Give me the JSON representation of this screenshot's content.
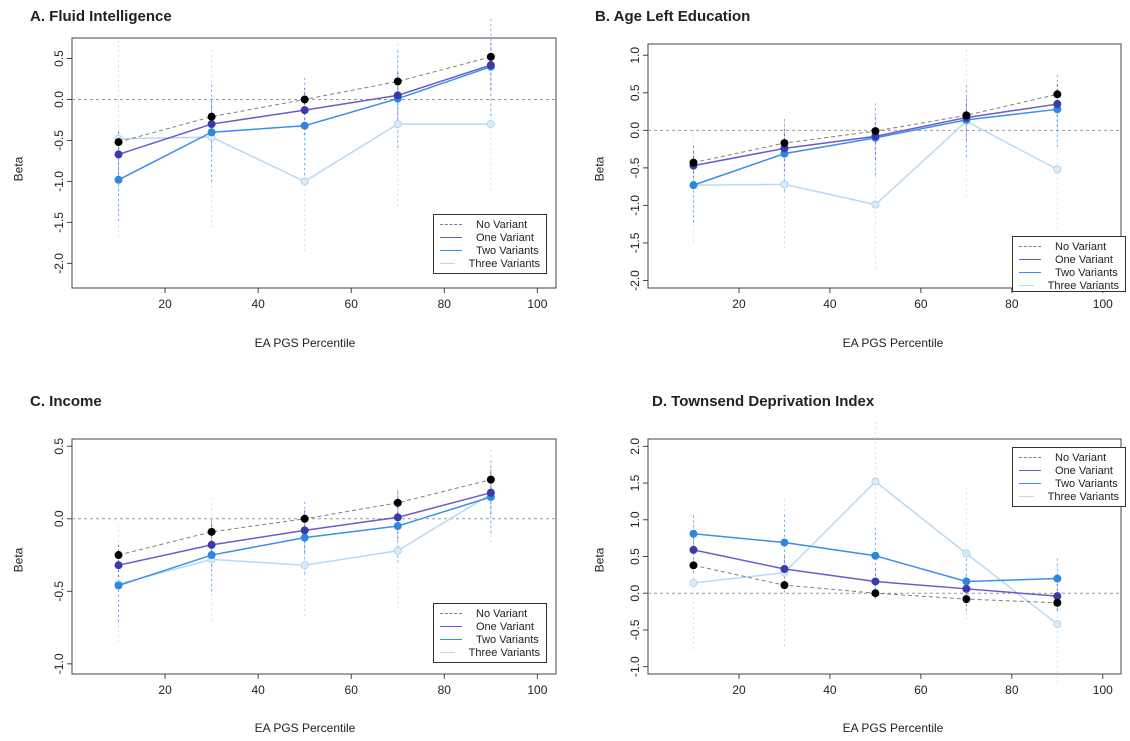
{
  "legend_labels": [
    "No Variant",
    "One Variant",
    "Two Variants",
    "Three Variants"
  ],
  "series_colors": [
    "#7f7f7f",
    "#6a5acd",
    "#3a8fe8",
    "#b9d8f2"
  ],
  "marker_colors": [
    "#000000",
    "#3a3aa8",
    "#2f86e0",
    "#d8ecfa"
  ],
  "chart_data": [
    {
      "type": "line",
      "title": "A. Fluid Intelligence",
      "xlabel": "EA PGS Percentile",
      "ylabel": "Beta",
      "x": [
        10,
        30,
        50,
        70,
        90
      ],
      "xticks": [
        20,
        40,
        60,
        80,
        100
      ],
      "xlim": [
        0,
        104
      ],
      "ylim": [
        -2.3,
        0.75
      ],
      "yticks": [
        "0.5",
        "0.0",
        "-0.5",
        "-1.0",
        "-1.5",
        "-2.0"
      ],
      "legend_position": "bottom-right",
      "series": [
        {
          "name": "No Variant",
          "values": [
            -0.52,
            -0.21,
            0.0,
            0.22,
            0.52
          ],
          "err": [
            0.15,
            0.15,
            0.1,
            0.15,
            0.15
          ]
        },
        {
          "name": "One Variant",
          "values": [
            -0.67,
            -0.3,
            -0.13,
            0.05,
            0.42
          ],
          "err": [
            0.3,
            0.3,
            0.3,
            0.3,
            0.3
          ]
        },
        {
          "name": "Two Variants",
          "values": [
            -0.98,
            -0.4,
            -0.32,
            0.01,
            0.4
          ],
          "err": [
            0.5,
            0.6,
            0.6,
            0.6,
            0.6
          ]
        },
        {
          "name": "Three Variants",
          "values": [
            -0.48,
            -0.46,
            -1.0,
            -0.3,
            -0.3
          ],
          "err": [
            1.2,
            1.1,
            0.85,
            1.0,
            0.8
          ]
        }
      ]
    },
    {
      "type": "line",
      "title": "B. Age Left Education",
      "xlabel": "EA PGS Percentile",
      "ylabel": "Beta",
      "x": [
        10,
        30,
        50,
        70,
        90
      ],
      "xticks": [
        20,
        40,
        60,
        80,
        100
      ],
      "xlim": [
        0,
        104
      ],
      "ylim": [
        -2.1,
        1.15
      ],
      "yticks": [
        "1.0",
        "0.5",
        "0.0",
        "-0.5",
        "-1.0",
        "-1.5",
        "-2.0"
      ],
      "legend_position": "bottom-right",
      "series": [
        {
          "name": "No Variant",
          "values": [
            -0.43,
            -0.17,
            -0.01,
            0.2,
            0.48
          ],
          "err": [
            0.15,
            0.15,
            0.1,
            0.15,
            0.15
          ]
        },
        {
          "name": "One Variant",
          "values": [
            -0.47,
            -0.24,
            -0.08,
            0.17,
            0.35
          ],
          "err": [
            0.3,
            0.3,
            0.3,
            0.3,
            0.3
          ]
        },
        {
          "name": "Two Variants",
          "values": [
            -0.73,
            -0.31,
            -0.1,
            0.14,
            0.28
          ],
          "err": [
            0.5,
            0.5,
            0.5,
            0.5,
            0.5
          ]
        },
        {
          "name": "Three Variants",
          "values": [
            -0.73,
            -0.72,
            -0.99,
            0.12,
            -0.52
          ],
          "err": [
            0.75,
            0.85,
            0.85,
            1.0,
            0.8
          ]
        }
      ]
    },
    {
      "type": "line",
      "title": "C. Income",
      "xlabel": "EA PGS Percentile",
      "ylabel": "Beta",
      "x": [
        10,
        30,
        50,
        70,
        90
      ],
      "xticks": [
        20,
        40,
        60,
        80,
        100
      ],
      "xlim": [
        0,
        104
      ],
      "ylim": [
        -1.07,
        0.55
      ],
      "yticks": [
        "0.5",
        "0.0",
        "-0.5",
        "-1.0"
      ],
      "legend_position": "bottom-right",
      "series": [
        {
          "name": "No Variant",
          "values": [
            -0.25,
            -0.09,
            0.0,
            0.11,
            0.27
          ],
          "err": [
            0.08,
            0.08,
            0.05,
            0.08,
            0.08
          ]
        },
        {
          "name": "One Variant",
          "values": [
            -0.32,
            -0.18,
            -0.08,
            0.01,
            0.18
          ],
          "err": [
            0.15,
            0.15,
            0.15,
            0.15,
            0.15
          ]
        },
        {
          "name": "Two Variants",
          "values": [
            -0.46,
            -0.25,
            -0.13,
            -0.05,
            0.15
          ],
          "err": [
            0.25,
            0.25,
            0.25,
            0.25,
            0.25
          ]
        },
        {
          "name": "Three Variants",
          "values": [
            -0.45,
            -0.28,
            -0.32,
            -0.22,
            0.17
          ],
          "err": [
            0.4,
            0.42,
            0.35,
            0.4,
            0.33
          ]
        }
      ]
    },
    {
      "type": "line",
      "title": "D. Townsend Deprivation Index",
      "xlabel": "EA PGS Percentile",
      "ylabel": "Beta",
      "x": [
        10,
        30,
        50,
        70,
        90
      ],
      "xticks": [
        20,
        40,
        60,
        80,
        100
      ],
      "xlim": [
        0,
        104
      ],
      "ylim": [
        -1.1,
        2.1
      ],
      "yticks": [
        "2.0",
        "1.5",
        "1.0",
        "0.5",
        "0.0",
        "-0.5",
        "-1.0"
      ],
      "legend_position": "top-right",
      "series": [
        {
          "name": "No Variant",
          "values": [
            0.38,
            0.11,
            0.0,
            -0.08,
            -0.13
          ],
          "err": [
            0.1,
            0.1,
            0.08,
            0.1,
            0.1
          ]
        },
        {
          "name": "One Variant",
          "values": [
            0.59,
            0.33,
            0.16,
            0.06,
            -0.04
          ],
          "err": [
            0.2,
            0.2,
            0.2,
            0.2,
            0.2
          ]
        },
        {
          "name": "Two Variants",
          "values": [
            0.81,
            0.69,
            0.51,
            0.16,
            0.2
          ],
          "err": [
            0.25,
            0.4,
            0.4,
            0.4,
            0.3
          ]
        },
        {
          "name": "Three Variants",
          "values": [
            0.14,
            0.28,
            1.52,
            0.54,
            -0.42
          ],
          "err": [
            0.9,
            1.0,
            0.85,
            0.9,
            0.8
          ]
        }
      ]
    }
  ]
}
